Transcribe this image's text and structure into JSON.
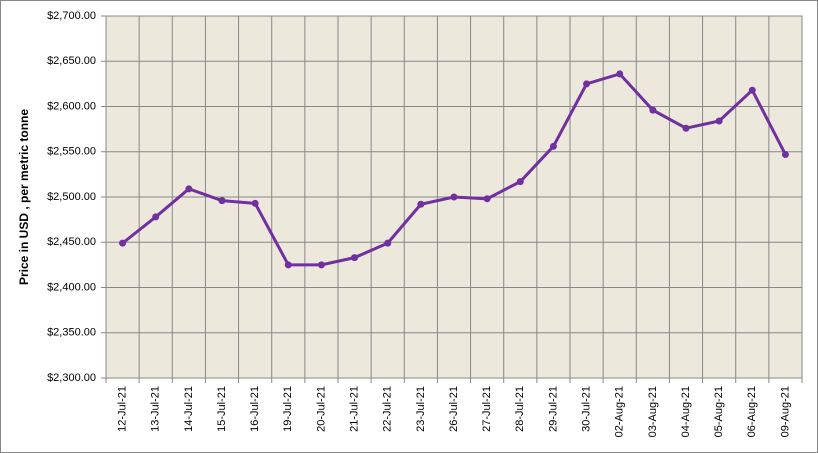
{
  "chart_data": {
    "type": "line",
    "y_label": "Price in USD , per metric tonne",
    "categories": [
      "12-Jul-21",
      "13-Jul-21",
      "14-Jul-21",
      "15-Jul-21",
      "16-Jul-21",
      "19-Jul-21",
      "20-Jul-21",
      "21-Jul-21",
      "22-Jul-21",
      "23-Jul-21",
      "26-Jul-21",
      "27-Jul-21",
      "28-Jul-21",
      "29-Jul-21",
      "30-Jul-21",
      "02-Aug-21",
      "03-Aug-21",
      "04-Aug-21",
      "05-Aug-21",
      "06-Aug-21",
      "09-Aug-21"
    ],
    "series": [
      {
        "name": "Price",
        "color": "#7030a0",
        "values": [
          2449,
          2478,
          2509,
          2496,
          2493,
          2425,
          2425,
          2433,
          2449,
          2492,
          2500,
          2498,
          2517,
          2556,
          2625,
          2636,
          2596,
          2576,
          2584,
          2618,
          2547
        ]
      }
    ],
    "ylim": [
      2300,
      2700
    ],
    "yticks": [
      {
        "value": 2300,
        "label": "$2,300.00"
      },
      {
        "value": 2350,
        "label": "$2,350.00"
      },
      {
        "value": 2400,
        "label": "$2,400.00"
      },
      {
        "value": 2450,
        "label": "$2,450.00"
      },
      {
        "value": 2500,
        "label": "$2,500.00"
      },
      {
        "value": 2550,
        "label": "$2,550.00"
      },
      {
        "value": 2600,
        "label": "$2,600.00"
      },
      {
        "value": 2650,
        "label": "$2,650.00"
      },
      {
        "value": 2700,
        "label": "$2,700.00"
      }
    ],
    "grid": true
  }
}
